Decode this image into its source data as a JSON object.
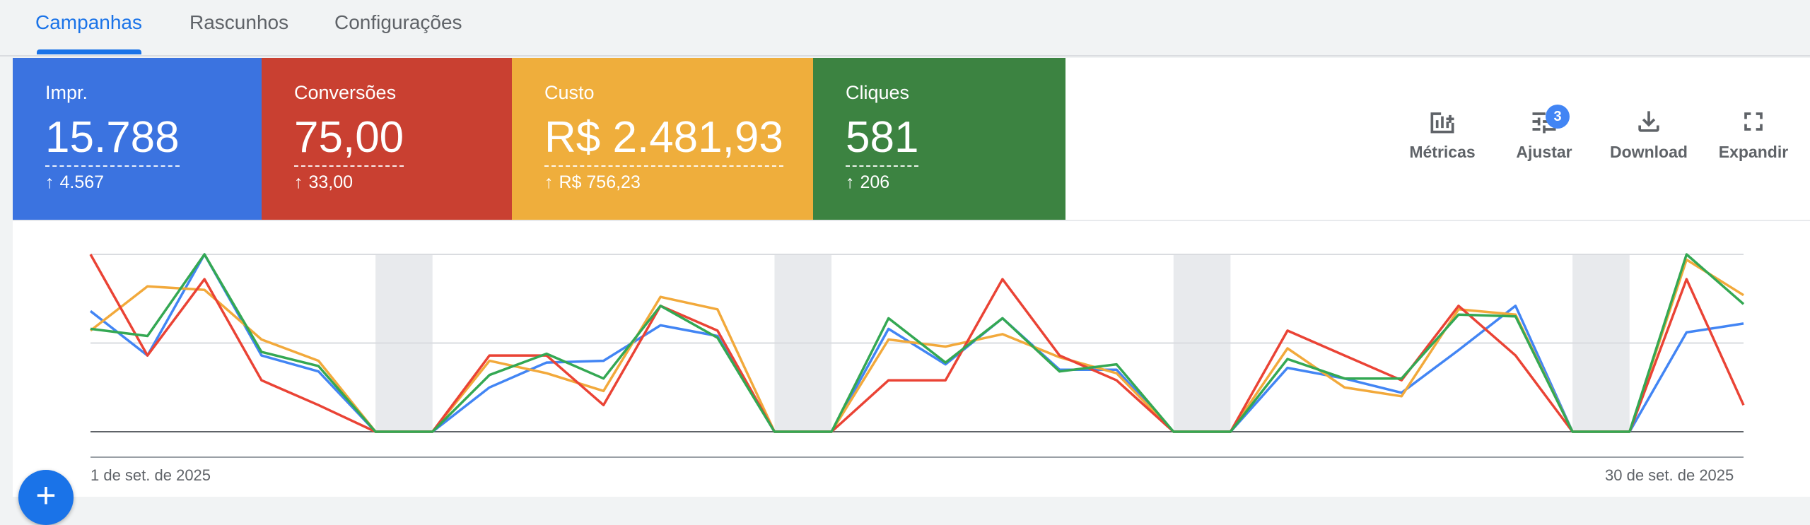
{
  "tabs": [
    {
      "label": "Campanhas",
      "active": true
    },
    {
      "label": "Rascunhos",
      "active": false
    },
    {
      "label": "Configurações",
      "active": false
    }
  ],
  "scorecards": [
    {
      "label": "Impr.",
      "value": "15.788",
      "delta": "4.567",
      "color": "#3b73e0"
    },
    {
      "label": "Conversões",
      "value": "75,00",
      "delta": "33,00",
      "color": "#c94031"
    },
    {
      "label": "Custo",
      "value": "R$ 2.481,93",
      "delta": "R$ 756,23",
      "color": "#efae3c"
    },
    {
      "label": "Cliques",
      "value": "581",
      "delta": "206",
      "color": "#3c8341"
    }
  ],
  "toolbar": {
    "metrics_label": "Métricas",
    "adjust_label": "Ajustar",
    "adjust_badge": "3",
    "download_label": "Download",
    "expand_label": "Expandir"
  },
  "chart_data": {
    "type": "line",
    "x_start_label": "1 de set. de 2025",
    "x_end_label": "30 de set. de 2025",
    "ylim": [
      0,
      1
    ],
    "grid": true,
    "weekend_bands": [
      [
        5,
        6
      ],
      [
        12,
        13
      ],
      [
        19,
        20
      ],
      [
        26,
        27
      ]
    ],
    "series": [
      {
        "color": "#4285f4",
        "values": [
          0.68,
          0.43,
          1.0,
          0.43,
          0.34,
          0,
          0,
          0.25,
          0.39,
          0.4,
          0.6,
          0.54,
          0,
          0,
          0.58,
          0.38,
          0.64,
          0.35,
          0.35,
          0,
          0,
          0.36,
          0.3,
          0.22,
          0.46,
          0.71,
          0,
          0,
          0.56,
          0.61
        ]
      },
      {
        "color": "#ea4335",
        "values": [
          1.0,
          0.43,
          0.86,
          0.29,
          0.15,
          0,
          0,
          0.43,
          0.43,
          0.15,
          0.71,
          0.57,
          0,
          0,
          0.29,
          0.29,
          0.86,
          0.43,
          0.29,
          0,
          0,
          0.57,
          0.43,
          0.29,
          0.71,
          0.43,
          0,
          0,
          0.86,
          0.15
        ]
      },
      {
        "color": "#f2a93b",
        "values": [
          0.57,
          0.82,
          0.8,
          0.52,
          0.4,
          0,
          0,
          0.4,
          0.33,
          0.23,
          0.76,
          0.69,
          0,
          0,
          0.52,
          0.48,
          0.55,
          0.42,
          0.33,
          0,
          0,
          0.47,
          0.25,
          0.2,
          0.69,
          0.66,
          0,
          0,
          0.97,
          0.77
        ]
      },
      {
        "color": "#34a853",
        "values": [
          0.58,
          0.54,
          1.0,
          0.45,
          0.37,
          0,
          0,
          0.32,
          0.44,
          0.3,
          0.71,
          0.53,
          0,
          0,
          0.64,
          0.39,
          0.64,
          0.34,
          0.38,
          0,
          0,
          0.41,
          0.3,
          0.3,
          0.66,
          0.65,
          0,
          0,
          1.0,
          0.72
        ]
      }
    ]
  },
  "fab_label": "+"
}
